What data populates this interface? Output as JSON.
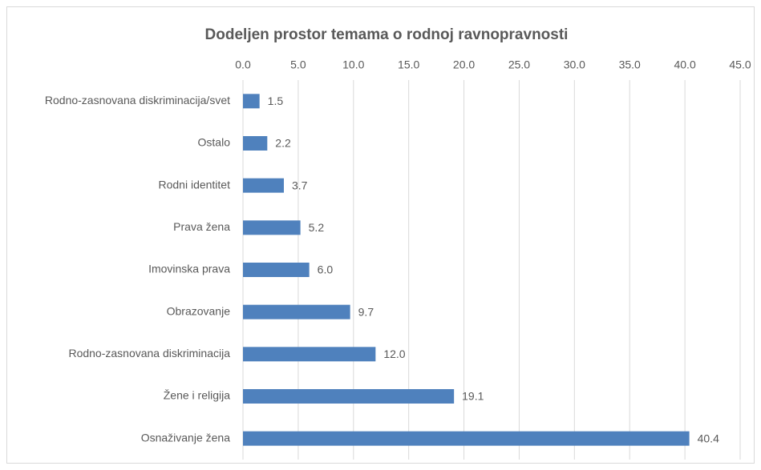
{
  "chart_data": {
    "type": "bar",
    "orientation": "horizontal",
    "title": "Dodeljen prostor temama o rodnoj ravnopravnosti",
    "categories": [
      "Rodno-zasnovana diskriminacija/svet",
      "Ostalo",
      "Rodni identitet",
      "Prava žena",
      "Imovinska prava",
      "Obrazovanje",
      "Rodno-zasnovana diskriminacija",
      "Žene i religija",
      "Osnaživanje žena"
    ],
    "values": [
      1.5,
      2.2,
      3.7,
      5.2,
      6.0,
      9.7,
      12.0,
      19.1,
      40.4
    ],
    "value_labels": [
      "1.5",
      "2.2",
      "3.7",
      "5.2",
      "6.0",
      "9.7",
      "12.0",
      "19.1",
      "40.4"
    ],
    "color": "#4f81bd",
    "xlim": [
      0,
      45
    ],
    "xticks": [
      {
        "value": 0,
        "label": "0.0"
      },
      {
        "value": 5,
        "label": "5.0"
      },
      {
        "value": 10,
        "label": "10.0"
      },
      {
        "value": 15,
        "label": "15.0"
      },
      {
        "value": 20,
        "label": "20.0"
      },
      {
        "value": 25,
        "label": "25.0"
      },
      {
        "value": 30,
        "label": "30.0"
      },
      {
        "value": 35,
        "label": "35.0"
      },
      {
        "value": 40,
        "label": "40.0"
      },
      {
        "value": 45,
        "label": "45.0"
      }
    ],
    "grid": true
  }
}
